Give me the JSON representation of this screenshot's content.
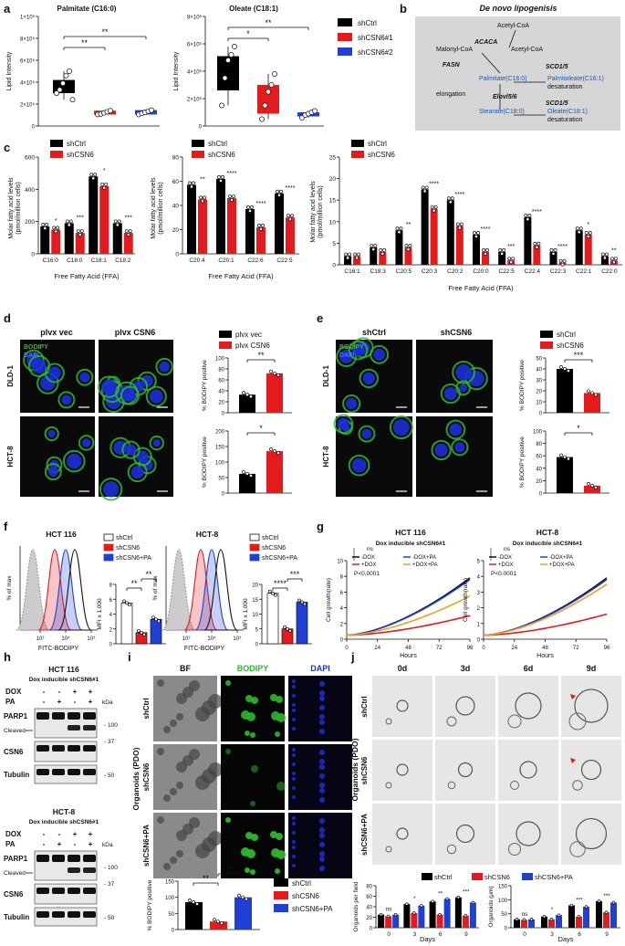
{
  "panel_letters": [
    "a",
    "b",
    "c",
    "d",
    "e",
    "f",
    "g",
    "h",
    "i",
    "j"
  ],
  "colors": {
    "shctrl": "#000000",
    "shcsn6": "#e41a1c",
    "sh2": "#1f3fd6",
    "pa": "#2a3fd0",
    "gray_box": "#d6d6d6",
    "bodipy_green": "#2db82d",
    "dapi_blue": "#1c2fd6",
    "micro_bg": "#0a0a0a"
  },
  "panel_a": {
    "title_left": "Palmitate (C16:0)",
    "title_right": "Oleate (C18:1)",
    "ylabel": "Lipid Intensity",
    "yticks_left": [
      "0",
      "2×10⁵",
      "4×10⁵",
      "6×10⁵",
      "8×10⁵",
      "1×10⁶"
    ],
    "yticks_right": [
      "0",
      "2×10⁶",
      "4×10⁶",
      "6×10⁶",
      "8×10⁶"
    ],
    "sig_left": [
      "**",
      "**"
    ],
    "sig_right": [
      "*",
      "**"
    ],
    "legend": [
      "shCtrl",
      "shCSN6#1",
      "shCSN6#2"
    ]
  },
  "panel_b": {
    "title": "De novo lipogenisis",
    "nodes": [
      "Acetyl-CoA",
      "ACACA",
      "Malonyl-CoA",
      "Acetyl-CoA",
      "FASN",
      "SCD1/5",
      "Palmitate(C16:0)",
      "Palmitoleate(C16:1)",
      "desaturation",
      "elongation",
      "Elovl5/6",
      "SCD1/5",
      "Stearate(C18:0)",
      "Oleate(C18:1)",
      "desaturation"
    ]
  },
  "panel_c": {
    "ylabel": "Molar fatty acid levels (pmol/million cells)",
    "xlabel": "Free Fatty Acid (FFA)",
    "legend": [
      "shCtrl",
      "shCSN6"
    ],
    "chart_data": [
      {
        "type": "bar",
        "categories": [
          "C16:0",
          "C18:0",
          "C18:1",
          "C18:2"
        ],
        "series": [
          {
            "name": "shCtrl",
            "values": [
              170,
              190,
              480,
              190
            ]
          },
          {
            "name": "shCSN6",
            "values": [
              150,
              130,
              420,
              130
            ]
          }
        ],
        "ylim": [
          0,
          600
        ],
        "yticks": [
          "0",
          "200",
          "400",
          "600"
        ],
        "sig": [
          "*",
          "***",
          "*",
          "***"
        ]
      },
      {
        "type": "bar",
        "categories": [
          "C20:4",
          "C20:1",
          "C22:6",
          "C22:5"
        ],
        "series": [
          {
            "name": "shCtrl",
            "values": [
              57,
              62,
              37,
              50
            ]
          },
          {
            "name": "shCSN6",
            "values": [
              45,
              46,
              22,
              30
            ]
          }
        ],
        "ylim": [
          0,
          80
        ],
        "yticks": [
          "0",
          "20",
          "40",
          "60",
          "80"
        ],
        "sig": [
          "**",
          "****",
          "****",
          "****"
        ]
      },
      {
        "type": "bar",
        "categories": [
          "C16:1",
          "C18:3",
          "C20:5",
          "C20:3",
          "C20:2",
          "C20:0",
          "C22:5",
          "C22:4",
          "C22:3",
          "C22:1",
          "C22:0"
        ],
        "series": [
          {
            "name": "shCtrl",
            "values": [
              2,
              4,
              8,
              17.5,
              15,
              7,
              3,
              11,
              3,
              8,
              2
            ]
          },
          {
            "name": "shCSN6",
            "values": [
              2,
              3,
              4,
              13,
              9,
              3,
              1,
              4.5,
              0.5,
              7,
              1
            ]
          }
        ],
        "ylim": [
          0,
          25
        ],
        "yticks": [
          "0",
          "5",
          "10",
          "15",
          "20",
          "25"
        ],
        "sig": [
          "",
          "",
          "**",
          "****",
          "****",
          "****",
          "***",
          "****",
          "****",
          "*",
          "**"
        ]
      }
    ]
  },
  "panel_d": {
    "col_labels": [
      "plvx vec",
      "plvx CSN6"
    ],
    "row_labels": [
      "DLD-1",
      "HCT-8"
    ],
    "stain_labels": [
      "BODIPY",
      "DAPI"
    ],
    "legend": [
      "plvx vec",
      "plvx CSN6"
    ],
    "ylabel": "% BODIPY positive",
    "chart_data": [
      {
        "type": "bar",
        "categories": [
          "plvx vec",
          "plvx CSN6"
        ],
        "values": [
          33,
          72
        ],
        "ylim": [
          0,
          100
        ],
        "yticks": [
          "0",
          "20",
          "40",
          "60",
          "80",
          "100"
        ],
        "sig": "**"
      },
      {
        "type": "bar",
        "categories": [
          "plvx vec",
          "plvx CSN6"
        ],
        "values": [
          62,
          135
        ],
        "ylim": [
          0,
          200
        ],
        "yticks": [
          "0",
          "50",
          "100",
          "150",
          "200"
        ],
        "sig": "*"
      }
    ]
  },
  "panel_e": {
    "col_labels": [
      "shCtrl",
      "shCSN6"
    ],
    "row_labels": [
      "DLD-1",
      "HCT-8"
    ],
    "stain_labels": [
      "BODIPY",
      "DAPI"
    ],
    "legend": [
      "shCtrl",
      "shCSN6"
    ],
    "ylabel": "% BODIPY positive",
    "chart_data": [
      {
        "type": "bar",
        "categories": [
          "shCtrl",
          "shCSN6"
        ],
        "values": [
          40,
          18
        ],
        "ylim": [
          0,
          50
        ],
        "yticks": [
          "0",
          "10",
          "20",
          "30",
          "40",
          "50"
        ],
        "sig": "***"
      },
      {
        "type": "bar",
        "categories": [
          "shCtrl",
          "shCSN6"
        ],
        "values": [
          58,
          12
        ],
        "ylim": [
          0,
          100
        ],
        "yticks": [
          "0",
          "20",
          "40",
          "60",
          "80",
          "100"
        ],
        "sig": "*"
      }
    ]
  },
  "panel_f": {
    "titles": [
      "HCT 116",
      "HCT-8"
    ],
    "legend": [
      "shCtrl",
      "shCSN6",
      "shCSN6+PA"
    ],
    "xlabel": "FITC-BODIPY",
    "ylabel": "% of max",
    "mfi_label": "MFI x 1,000",
    "chart_data": [
      {
        "type": "bar",
        "categories": [
          "shCtrl",
          "shCSN6",
          "shCSN6+PA"
        ],
        "values": [
          5.5,
          1.5,
          3.3
        ],
        "ylim": [
          0,
          8
        ],
        "yticks": [
          "0",
          "2",
          "4",
          "6",
          "8"
        ],
        "sig": [
          "**",
          "**"
        ]
      },
      {
        "type": "bar",
        "categories": [
          "shCtrl",
          "shCSN6",
          "shCSN6+PA"
        ],
        "values": [
          17,
          5,
          14
        ],
        "ylim": [
          0,
          20
        ],
        "yticks": [
          "0",
          "5",
          "10",
          "15",
          "20"
        ],
        "sig": [
          "****",
          "***"
        ]
      }
    ]
  },
  "panel_g": {
    "titles": [
      "HCT 116",
      "HCT-8"
    ],
    "subtitle": "Dox inducible shCSN6#1",
    "legend": [
      "-DOX",
      "-DOX+PA",
      "+DOX",
      "+DOX+PA"
    ],
    "ns": "ns",
    "pval": "P<0.0001",
    "xlabel": "Hours",
    "ylabel": "Cell growth(rate)",
    "xticks": [
      "0",
      "24",
      "48",
      "72",
      "96"
    ],
    "yticks_left": [
      "0",
      "2",
      "4",
      "6",
      "8",
      "10"
    ],
    "yticks_right": [
      "0",
      "1",
      "2",
      "3",
      "4",
      "5"
    ]
  },
  "panel_h": {
    "blots": [
      {
        "title": "HCT 116",
        "subtitle": "Dox inducible shCSN6#1"
      },
      {
        "title": "HCT-8",
        "subtitle": "Dox inducible shCSN6#1"
      }
    ],
    "row_labels": [
      "DOX",
      "PA"
    ],
    "signs_dox": [
      "-",
      "-",
      "+",
      "+"
    ],
    "signs_pa": [
      "-",
      "+",
      "-",
      "+"
    ],
    "kda": "kDa",
    "bands": [
      "PARP1",
      "Cleaved",
      "CSN6",
      "Tubulin"
    ],
    "markers": [
      "100",
      "37",
      "50"
    ]
  },
  "panel_i": {
    "col_labels": [
      "BF",
      "BODIPY",
      "DAPI"
    ],
    "row_labels": [
      "shCtrl",
      "shCSN6",
      "shCSN6+PA"
    ],
    "side_label": "Organoids (PDO)",
    "legend": [
      "shCtrl",
      "shCSN6",
      "shCSN6+PA"
    ],
    "ylabel": "% BODIPY positive",
    "chart_data": {
      "type": "bar",
      "categories": [
        "shCtrl",
        "shCSN6",
        "shCSN6+PA"
      ],
      "values": [
        85,
        25,
        100
      ],
      "ylim": [
        0,
        150
      ],
      "yticks": [
        "0",
        "50",
        "100",
        "150"
      ],
      "sig": [
        "**",
        "***"
      ]
    }
  },
  "panel_j": {
    "col_labels": [
      "0d",
      "3d",
      "6d",
      "9d"
    ],
    "row_labels": [
      "shCtrl",
      "shCSN6",
      "shCSN6+PA"
    ],
    "side_label": "Organoids (PDO)",
    "legend": [
      "shCtrl",
      "shCSN6",
      "shCSN6+PA"
    ],
    "xlabel": "Days",
    "chart_data": [
      {
        "type": "bar",
        "ylabel": "Organoids per field",
        "categories": [
          "0",
          "3",
          "6",
          "9"
        ],
        "series": [
          {
            "name": "shCtrl",
            "values": [
              25,
              45,
              50,
              58
            ]
          },
          {
            "name": "shCSN6",
            "values": [
              22,
              28,
              25,
              23
            ]
          },
          {
            "name": "shCSN6+PA",
            "values": [
              25,
              42,
              55,
              48
            ]
          }
        ],
        "ylim": [
          0,
          80
        ],
        "yticks": [
          "0",
          "20",
          "40",
          "60",
          "80"
        ],
        "sig": [
          "ns",
          "*",
          "**",
          "***"
        ]
      },
      {
        "type": "bar",
        "ylabel": "Organoids (μm)",
        "categories": [
          "0",
          "3",
          "6",
          "9"
        ],
        "series": [
          {
            "name": "shCtrl",
            "values": [
              30,
              40,
              80,
              95
            ]
          },
          {
            "name": "shCSN6",
            "values": [
              28,
              30,
              40,
              55
            ]
          },
          {
            "name": "shCSN6+PA",
            "values": [
              30,
              45,
              75,
              90
            ]
          }
        ],
        "ylim": [
          0,
          150
        ],
        "yticks": [
          "0",
          "50",
          "100",
          "150"
        ],
        "sig": [
          "ns",
          "*",
          "***",
          "***"
        ]
      }
    ]
  }
}
